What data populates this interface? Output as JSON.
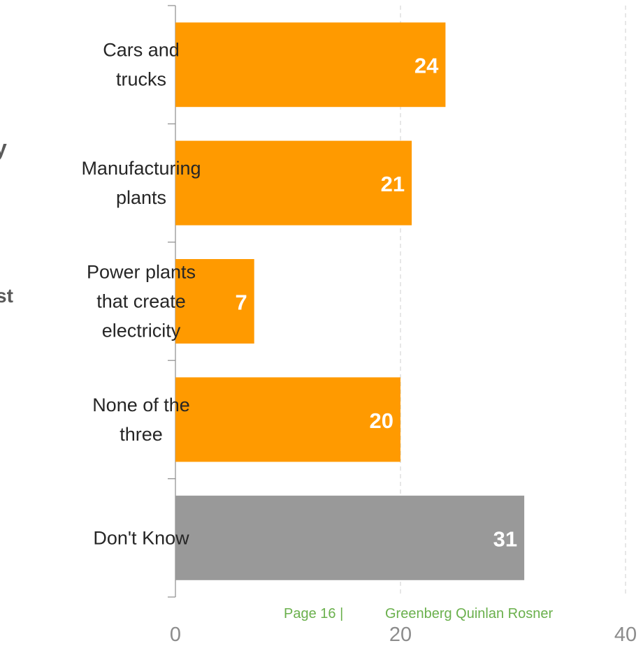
{
  "cropped_fragments": [
    "y",
    "st",
    ":"
  ],
  "footer": {
    "page": "Page 16 |",
    "company": "Greenberg Quinlan Rosner"
  },
  "colors": {
    "bar": "#ff9a00",
    "bar_dont_know": "#999999",
    "label_text": "#262626",
    "value_text": "#ffffff",
    "tick_text": "#8c8c8c",
    "grid": "#cfcfcf",
    "axis": "#8c8c8c",
    "footer": "#6ab04c"
  },
  "chart_data": {
    "type": "bar",
    "orientation": "horizontal",
    "title": "",
    "xlabel": "",
    "ylabel": "",
    "categories": [
      [
        "Cars and",
        "trucks"
      ],
      [
        "Manufacturing",
        "plants"
      ],
      [
        "Power plants",
        "that create",
        "electricity"
      ],
      [
        "None of the",
        "three"
      ],
      [
        "Don't Know"
      ]
    ],
    "values": [
      24,
      21,
      7,
      20,
      31
    ],
    "bar_colors": [
      "#ff9a00",
      "#ff9a00",
      "#ff9a00",
      "#ff9a00",
      "#999999"
    ],
    "xlim": [
      0,
      40
    ],
    "xticks": [
      0,
      20,
      40
    ],
    "grid": "vertical dashed"
  }
}
